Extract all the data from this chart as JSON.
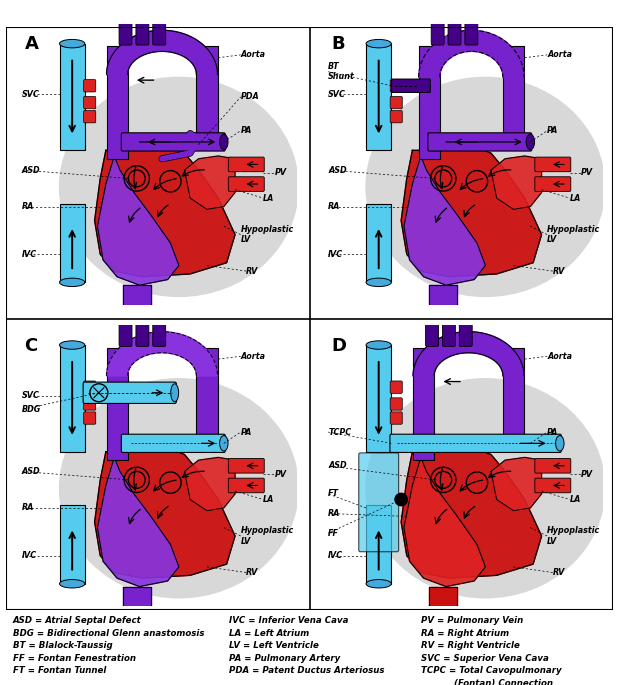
{
  "figure_width": 6.32,
  "figure_height": 6.85,
  "dpi": 100,
  "background_color": "#ffffff",
  "border_color": "#000000",
  "panel_label_fontsize": 13,
  "panel_label_weight": "bold",
  "legend_col1": [
    "ASD = Atrial Septal Defect",
    "BDG = Bidirectional Glenn anastomosis",
    "BT = Blalock-Taussig",
    "FF = Fontan Fenestration",
    "FT = Fontan Tunnel"
  ],
  "legend_col2": [
    "IVC = Inferior Vena Cava",
    "LA = Left Atrium",
    "LV = Left Ventricle",
    "PA = Pulmonary Artery",
    "PDA = Patent Ductus Arteriosus"
  ],
  "legend_col3": [
    "PV = Pulmonary Vein",
    "RA = Right Atrium",
    "RV = Right Ventricle",
    "SVC = Superior Vena Cava",
    "TCPC = Total Cavopulmonary",
    "           (Fontan) Connection"
  ],
  "legend_fontsize": 6.2,
  "colors": {
    "red": "#cc1111",
    "red2": "#dd2222",
    "blue_light": "#55ccee",
    "blue_mid": "#44aadd",
    "blue_dark": "#2288bb",
    "purple": "#7722cc",
    "purple2": "#8833dd",
    "purple_dark": "#440088",
    "purple_mid": "#6611bb",
    "gray_bg": "#cccccc",
    "gray_bg2": "#d8d8d8",
    "black": "#000000",
    "white": "#ffffff",
    "dark_blue_purple": "#330066"
  }
}
